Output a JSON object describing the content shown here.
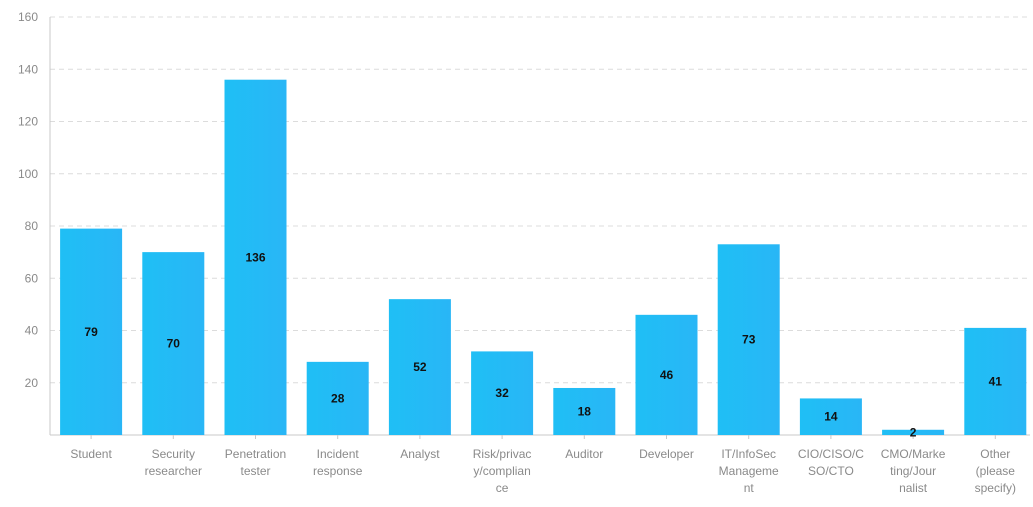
{
  "chart_data": {
    "type": "bar",
    "title": "",
    "xlabel": "",
    "ylabel": "",
    "ylim": [
      0,
      160
    ],
    "yticks": [
      20,
      40,
      60,
      80,
      100,
      120,
      140,
      160
    ],
    "grid": true,
    "legend": "none",
    "bar_color": "#1fbff5",
    "bar_color_edge": "#29b6f6",
    "categories": [
      {
        "lines": [
          "Student"
        ]
      },
      {
        "lines": [
          "Security",
          "researcher"
        ]
      },
      {
        "lines": [
          "Penetration",
          "tester"
        ]
      },
      {
        "lines": [
          "Incident",
          "response"
        ]
      },
      {
        "lines": [
          "Analyst"
        ]
      },
      {
        "lines": [
          "Risk/privac",
          "y/complian",
          "ce"
        ]
      },
      {
        "lines": [
          "Auditor"
        ]
      },
      {
        "lines": [
          "Developer"
        ]
      },
      {
        "lines": [
          "IT/InfoSec",
          "Manageme",
          "nt"
        ]
      },
      {
        "lines": [
          "CIO/CISO/C",
          "SO/CTO"
        ]
      },
      {
        "lines": [
          "CMO/Marke",
          "ting/Jour",
          "nalist"
        ]
      },
      {
        "lines": [
          "Other",
          "(please",
          "specify)"
        ]
      }
    ],
    "values": [
      79,
      70,
      136,
      28,
      52,
      32,
      18,
      46,
      73,
      14,
      2,
      41
    ]
  }
}
